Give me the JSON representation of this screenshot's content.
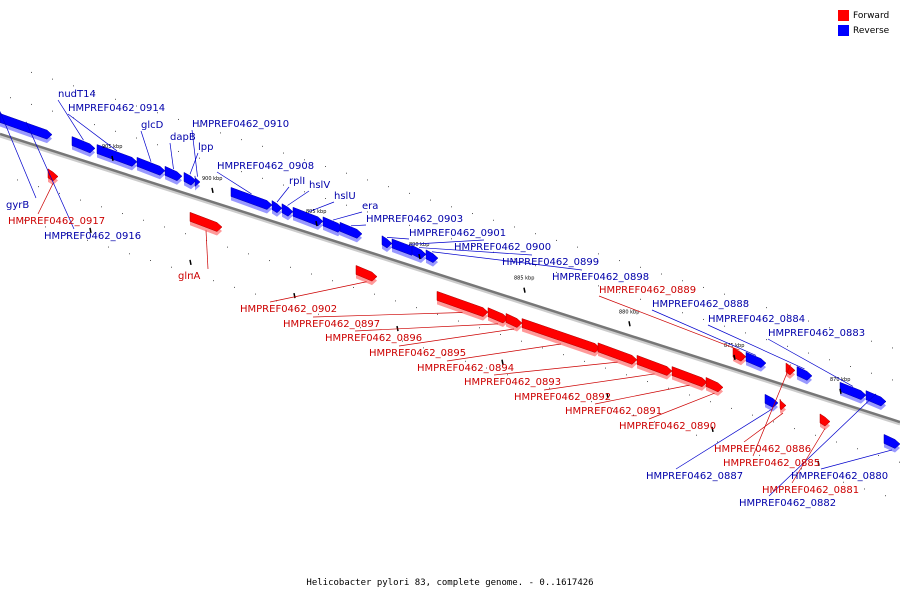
{
  "legend": {
    "forward_label": "Forward",
    "reverse_label": "Reverse",
    "forward_color": "#ff0000",
    "reverse_color": "#0000ff"
  },
  "footer": "Helicobacter pylori 83, complete genome. - 0..1617426",
  "label_colors": {
    "forward": "#cc0000",
    "reverse": "#0000aa"
  },
  "ticks": [
    "905 kbp",
    "900 kbp",
    "895 kbp",
    "890 kbp",
    "885 kbp",
    "880 kbp",
    "875 kbp",
    "870 kbp"
  ],
  "genes": [
    {
      "name": "gyrB",
      "strand": "reverse"
    },
    {
      "name": "HMPREF0462_0917",
      "strand": "forward"
    },
    {
      "name": "HMPREF0462_0916",
      "strand": "reverse"
    },
    {
      "name": "nudT14",
      "strand": "reverse"
    },
    {
      "name": "HMPREF0462_0914",
      "strand": "reverse"
    },
    {
      "name": "glcD",
      "strand": "reverse"
    },
    {
      "name": "dapB",
      "strand": "reverse"
    },
    {
      "name": "lpp",
      "strand": "reverse"
    },
    {
      "name": "HMPREF0462_0910",
      "strand": "reverse"
    },
    {
      "name": "glnA",
      "strand": "forward"
    },
    {
      "name": "HMPREF0462_0908",
      "strand": "reverse"
    },
    {
      "name": "rplI",
      "strand": "reverse"
    },
    {
      "name": "hslV",
      "strand": "reverse"
    },
    {
      "name": "hslU",
      "strand": "reverse"
    },
    {
      "name": "era",
      "strand": "reverse"
    },
    {
      "name": "HMPREF0462_0903",
      "strand": "reverse"
    },
    {
      "name": "HMPREF0462_0902",
      "strand": "forward"
    },
    {
      "name": "HMPREF0462_0901",
      "strand": "reverse"
    },
    {
      "name": "HMPREF0462_0900",
      "strand": "reverse"
    },
    {
      "name": "HMPREF0462_0899",
      "strand": "reverse"
    },
    {
      "name": "HMPREF0462_0898",
      "strand": "reverse"
    },
    {
      "name": "HMPREF0462_0897",
      "strand": "forward"
    },
    {
      "name": "HMPREF0462_0896",
      "strand": "forward"
    },
    {
      "name": "HMPREF0462_0895",
      "strand": "forward"
    },
    {
      "name": "HMPREF0462_0894",
      "strand": "forward"
    },
    {
      "name": "HMPREF0462_0893",
      "strand": "forward"
    },
    {
      "name": "HMPREF0462_0892",
      "strand": "forward"
    },
    {
      "name": "HMPREF0462_0891",
      "strand": "forward"
    },
    {
      "name": "HMPREF0462_0890",
      "strand": "forward"
    },
    {
      "name": "HMPREF0462_0889",
      "strand": "forward"
    },
    {
      "name": "HMPREF0462_0888",
      "strand": "reverse"
    },
    {
      "name": "HMPREF0462_0887",
      "strand": "reverse"
    },
    {
      "name": "HMPREF0462_0886",
      "strand": "forward"
    },
    {
      "name": "HMPREF0462_0885",
      "strand": "forward"
    },
    {
      "name": "HMPREF0462_0884",
      "strand": "reverse"
    },
    {
      "name": "HMPREF0462_0883",
      "strand": "reverse"
    },
    {
      "name": "HMPREF0462_0882",
      "strand": "reverse"
    },
    {
      "name": "HMPREF0462_0881",
      "strand": "forward"
    },
    {
      "name": "HMPREF0462_0880",
      "strand": "reverse"
    }
  ]
}
